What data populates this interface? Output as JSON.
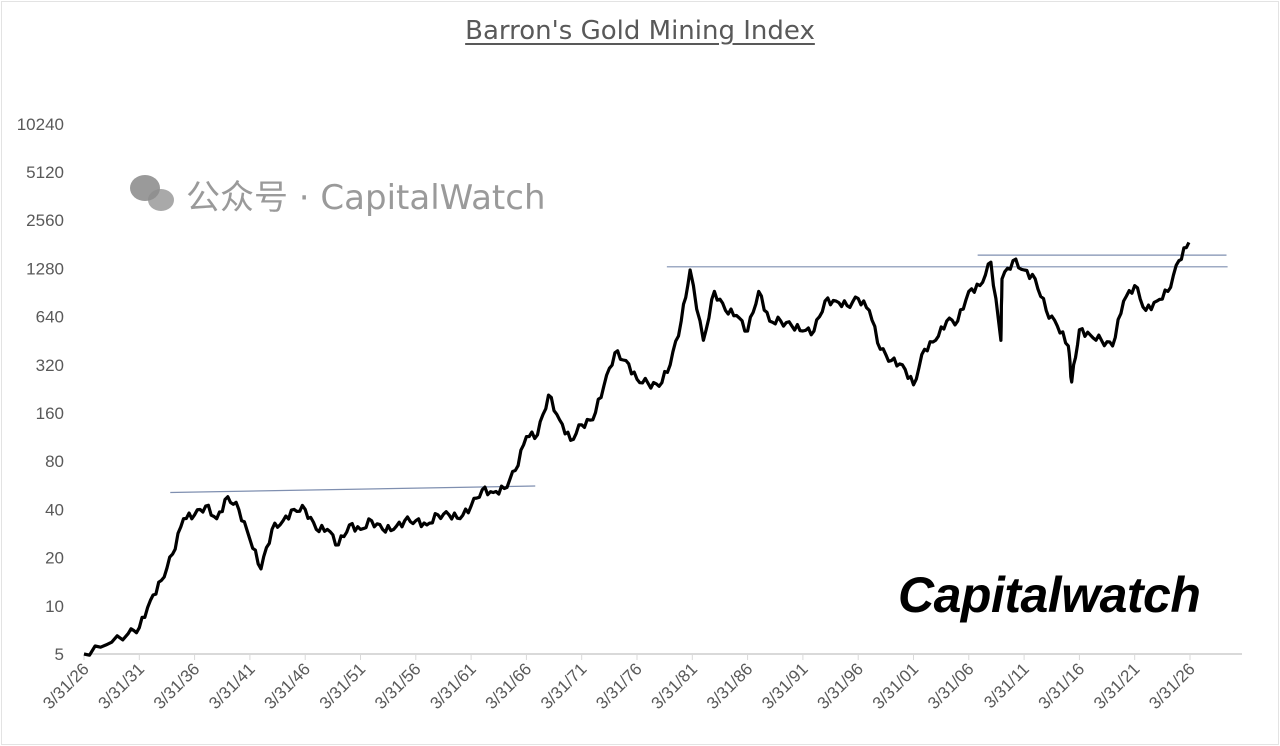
{
  "chart_data": {
    "type": "line",
    "title": "Barron's Gold Mining Index",
    "xlabel": "",
    "ylabel": "",
    "y_scale": "log2",
    "ylim": [
      5,
      10240
    ],
    "xlim": [
      1926,
      2026
    ],
    "y_ticks": [
      "5",
      "10",
      "20",
      "40",
      "80",
      "160",
      "320",
      "640",
      "1280",
      "2560",
      "5120",
      "10240"
    ],
    "y_tick_values": [
      5,
      10,
      20,
      40,
      80,
      160,
      320,
      640,
      1280,
      2560,
      5120,
      10240
    ],
    "x_ticks": [
      "3/31/26",
      "3/31/31",
      "3/31/36",
      "3/31/41",
      "3/31/46",
      "3/31/51",
      "3/31/56",
      "3/31/61",
      "3/31/66",
      "3/31/71",
      "3/31/76",
      "3/31/81",
      "3/31/86",
      "3/31/91",
      "3/31/96",
      "3/31/01",
      "3/31/06",
      "3/31/11",
      "3/31/16",
      "3/31/21",
      "3/31/26"
    ],
    "x_tick_years": [
      1926,
      1931,
      1936,
      1941,
      1946,
      1951,
      1956,
      1961,
      1966,
      1971,
      1976,
      1981,
      1986,
      1991,
      1996,
      2001,
      2006,
      2011,
      2016,
      2021,
      2026
    ],
    "grid": false,
    "legend": "none",
    "series": [
      {
        "color": "#000000",
        "x": [
          1926,
          1928,
          1930,
          1931,
          1932,
          1933,
          1934,
          1935,
          1936,
          1937,
          1938,
          1939,
          1940,
          1941,
          1942,
          1943,
          1944,
          1945,
          1946,
          1947,
          1948,
          1949,
          1950,
          1951,
          1952,
          1953,
          1954,
          1955,
          1956,
          1957,
          1958,
          1959,
          1960,
          1961,
          1962,
          1963,
          1964,
          1965,
          1966,
          1967,
          1968,
          1969,
          1970,
          1971,
          1972,
          1973,
          1974,
          1975,
          1976,
          1977,
          1978,
          1979,
          1980,
          1980.8,
          1982,
          1983,
          1984,
          1985,
          1986,
          1987,
          1988,
          1989,
          1990,
          1991,
          1992,
          1993,
          1994,
          1995,
          1996,
          1997,
          1998,
          1999,
          2000,
          2001,
          2002,
          2003,
          2004,
          2005,
          2006,
          2007,
          2008,
          2008.9,
          2009,
          2010,
          2011,
          2012,
          2013,
          2014,
          2015,
          2015.3,
          2016,
          2017,
          2018,
          2019,
          2020,
          2021,
          2022,
          2023,
          2024,
          2025,
          2025.9
        ],
        "y": [
          5,
          5.7,
          6.7,
          7.3,
          10.8,
          14.4,
          21,
          35,
          37,
          42,
          35,
          48,
          40,
          26,
          17,
          30,
          34,
          40,
          40,
          30,
          30,
          24,
          32,
          30,
          34,
          30,
          30,
          34,
          34,
          32,
          37,
          37,
          35,
          42,
          53,
          51,
          54,
          70,
          114,
          117,
          207,
          145,
          108,
          135,
          145,
          235,
          380,
          340,
          260,
          245,
          235,
          320,
          600,
          1250,
          455,
          920,
          700,
          650,
          520,
          920,
          600,
          600,
          560,
          520,
          520,
          800,
          800,
          750,
          830,
          700,
          400,
          340,
          320,
          240,
          400,
          455,
          600,
          600,
          920,
          1000,
          1400,
          455,
          1100,
          1430,
          1250,
          1100,
          700,
          560,
          420,
          250,
          530,
          490,
          455,
          420,
          800,
          1000,
          700,
          800,
          920,
          1430,
          1860
        ]
      }
    ],
    "reference_lines": [
      {
        "x": [
          1933.8,
          1966.8
        ],
        "y": [
          51,
          56
        ],
        "color": "#7f8fb0"
      },
      {
        "x": [
          1978.7,
          2029.4
        ],
        "y": [
          1310,
          1310
        ],
        "color": "#7f8fb0"
      },
      {
        "x": [
          2006.8,
          2029.3
        ],
        "y": [
          1550,
          1550
        ],
        "color": "#7f8fb0"
      }
    ]
  },
  "watermarks": {
    "brand": "Capitalwatch",
    "wechat": "公众号 · CapitalWatch"
  }
}
